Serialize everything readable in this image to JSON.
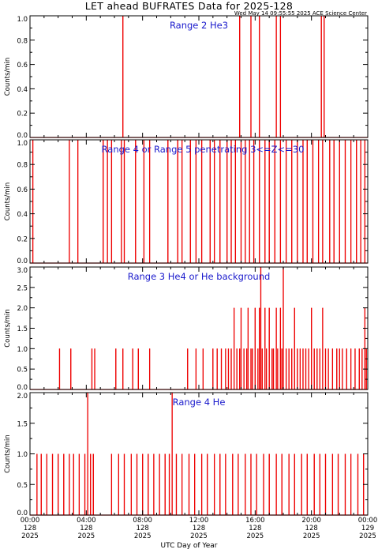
{
  "title": "LET ahead BUFRATES Data for 2025-128",
  "timestamp": "Wed May 14 09:55:55 2025 ACE Science Center",
  "xlabel": "UTC Day of Year",
  "colors": {
    "data": "#ee0000",
    "panel_label": "#1a1acc",
    "axes": "#000000"
  },
  "x_ticks": [
    {
      "time": "00:00",
      "doy": "128",
      "year": "2025"
    },
    {
      "time": "04:00",
      "doy": "128",
      "year": "2025"
    },
    {
      "time": "08:00",
      "doy": "128",
      "year": "2025"
    },
    {
      "time": "12:00",
      "doy": "128",
      "year": "2025"
    },
    {
      "time": "16:00",
      "doy": "128",
      "year": "2025"
    },
    {
      "time": "20:00",
      "doy": "128",
      "year": "2025"
    },
    {
      "time": "00:00",
      "doy": "129",
      "year": "2025"
    }
  ],
  "chart_data": [
    {
      "type": "line",
      "label": "Range 2 He3",
      "ylabel": "Counts/min",
      "xlim_hours": [
        0,
        24
      ],
      "ylim": [
        0,
        1.0
      ],
      "yticks": [
        "0.0",
        "0.2",
        "0.4",
        "0.6",
        "0.8",
        "1.0"
      ],
      "spikes": [
        [
          6.6,
          1
        ],
        [
          14.9,
          1
        ],
        [
          15.7,
          1
        ],
        [
          16.3,
          1
        ],
        [
          17.5,
          1
        ],
        [
          17.8,
          1
        ],
        [
          20.7,
          1
        ],
        [
          20.9,
          1
        ]
      ]
    },
    {
      "type": "line",
      "label": "Range 4 or Range 5 penetrating 3<=Z<=30",
      "ylabel": "Counts/min",
      "xlim_hours": [
        0,
        24
      ],
      "ylim": [
        0,
        1.0
      ],
      "yticks": [
        "0.0",
        "0.2",
        "0.4",
        "0.6",
        "0.8",
        "1.0"
      ],
      "spikes": [
        [
          0.2,
          1
        ],
        [
          2.8,
          1
        ],
        [
          3.4,
          1
        ],
        [
          5.2,
          1
        ],
        [
          5.5,
          1
        ],
        [
          5.8,
          1
        ],
        [
          6.5,
          1
        ],
        [
          6.7,
          1
        ],
        [
          7.5,
          1
        ],
        [
          8.1,
          1
        ],
        [
          8.5,
          1
        ],
        [
          9.8,
          1
        ],
        [
          10.5,
          1
        ],
        [
          10.8,
          1
        ],
        [
          11.4,
          1
        ],
        [
          11.8,
          1
        ],
        [
          12.2,
          1
        ],
        [
          12.8,
          1
        ],
        [
          13.1,
          1
        ],
        [
          13.5,
          1
        ],
        [
          14.0,
          1
        ],
        [
          14.3,
          1
        ],
        [
          14.6,
          1
        ],
        [
          15.0,
          1
        ],
        [
          15.3,
          1
        ],
        [
          15.6,
          1
        ],
        [
          15.9,
          1
        ],
        [
          16.3,
          1
        ],
        [
          16.7,
          1
        ],
        [
          17.0,
          1
        ],
        [
          17.4,
          1
        ],
        [
          17.8,
          1
        ],
        [
          18.2,
          1
        ],
        [
          18.6,
          1
        ],
        [
          19.0,
          1
        ],
        [
          19.4,
          1
        ],
        [
          19.7,
          1
        ],
        [
          20.1,
          1
        ],
        [
          20.5,
          1
        ],
        [
          20.8,
          1
        ],
        [
          21.3,
          1
        ],
        [
          21.6,
          1
        ],
        [
          22.0,
          1
        ],
        [
          22.4,
          1
        ],
        [
          22.8,
          1
        ],
        [
          23.2,
          1
        ],
        [
          23.5,
          1
        ],
        [
          23.8,
          1
        ]
      ]
    },
    {
      "type": "line",
      "label": "Range 3 He4 or He background",
      "ylabel": "Counts/min",
      "xlim_hours": [
        0,
        24
      ],
      "ylim": [
        0,
        3.0
      ],
      "yticks": [
        "0.0",
        "0.5",
        "1.0",
        "1.5",
        "2.0",
        "2.5",
        "3.0"
      ],
      "spikes": [
        [
          2.1,
          1
        ],
        [
          2.9,
          1
        ],
        [
          4.4,
          1
        ],
        [
          4.6,
          1
        ],
        [
          6.1,
          1
        ],
        [
          6.6,
          1
        ],
        [
          7.3,
          1
        ],
        [
          7.7,
          1
        ],
        [
          8.5,
          1
        ],
        [
          11.2,
          1
        ],
        [
          11.8,
          1
        ],
        [
          12.3,
          1
        ],
        [
          13.0,
          1
        ],
        [
          13.3,
          1
        ],
        [
          13.6,
          1
        ],
        [
          13.9,
          1
        ],
        [
          14.1,
          1
        ],
        [
          14.3,
          1
        ],
        [
          14.5,
          2
        ],
        [
          14.7,
          1
        ],
        [
          14.9,
          1
        ],
        [
          15.0,
          2
        ],
        [
          15.2,
          1
        ],
        [
          15.4,
          1
        ],
        [
          15.5,
          2
        ],
        [
          15.7,
          1
        ],
        [
          15.8,
          1
        ],
        [
          16.0,
          2
        ],
        [
          16.2,
          1
        ],
        [
          16.3,
          2
        ],
        [
          16.4,
          3
        ],
        [
          16.5,
          1
        ],
        [
          16.7,
          2
        ],
        [
          16.8,
          1
        ],
        [
          17.0,
          2
        ],
        [
          17.2,
          1
        ],
        [
          17.3,
          1
        ],
        [
          17.5,
          2
        ],
        [
          17.6,
          1
        ],
        [
          17.8,
          2
        ],
        [
          17.9,
          1
        ],
        [
          18.0,
          3
        ],
        [
          18.2,
          1
        ],
        [
          18.4,
          1
        ],
        [
          18.6,
          1
        ],
        [
          18.8,
          2
        ],
        [
          19.0,
          1
        ],
        [
          19.2,
          1
        ],
        [
          19.4,
          1
        ],
        [
          19.6,
          1
        ],
        [
          19.8,
          1
        ],
        [
          20.0,
          2
        ],
        [
          20.2,
          1
        ],
        [
          20.4,
          1
        ],
        [
          20.6,
          1
        ],
        [
          20.8,
          2
        ],
        [
          21.0,
          1
        ],
        [
          21.2,
          1
        ],
        [
          21.5,
          1
        ],
        [
          21.8,
          1
        ],
        [
          22.0,
          1
        ],
        [
          22.2,
          1
        ],
        [
          22.5,
          1
        ],
        [
          22.8,
          1
        ],
        [
          23.1,
          1
        ],
        [
          23.4,
          1
        ],
        [
          23.6,
          1
        ],
        [
          23.8,
          2
        ],
        [
          23.9,
          1
        ]
      ]
    },
    {
      "type": "line",
      "label": "Range 4 He",
      "ylabel": "Counts/min",
      "xlim_hours": [
        0,
        24
      ],
      "ylim": [
        0,
        2.0
      ],
      "yticks": [
        "0.0",
        "0.5",
        "1.0",
        "1.5",
        "2.0"
      ],
      "spikes": [
        [
          0.5,
          1
        ],
        [
          0.8,
          1
        ],
        [
          1.2,
          1
        ],
        [
          1.6,
          1
        ],
        [
          2.0,
          1
        ],
        [
          2.4,
          1
        ],
        [
          2.8,
          1
        ],
        [
          3.1,
          1
        ],
        [
          3.5,
          1
        ],
        [
          3.9,
          1
        ],
        [
          4.1,
          2
        ],
        [
          4.3,
          1
        ],
        [
          4.5,
          1
        ],
        [
          5.8,
          1
        ],
        [
          6.3,
          1
        ],
        [
          6.7,
          1
        ],
        [
          7.2,
          1
        ],
        [
          7.6,
          1
        ],
        [
          8.0,
          1
        ],
        [
          8.4,
          1
        ],
        [
          8.8,
          1
        ],
        [
          9.2,
          1
        ],
        [
          9.6,
          1
        ],
        [
          9.9,
          1
        ],
        [
          10.1,
          2
        ],
        [
          10.4,
          1
        ],
        [
          10.8,
          1
        ],
        [
          11.3,
          1
        ],
        [
          11.7,
          1
        ],
        [
          12.2,
          1
        ],
        [
          12.6,
          1
        ],
        [
          13.1,
          1
        ],
        [
          13.5,
          1
        ],
        [
          13.9,
          1
        ],
        [
          14.4,
          1
        ],
        [
          14.8,
          1
        ],
        [
          15.3,
          1
        ],
        [
          15.7,
          1
        ],
        [
          16.1,
          1
        ],
        [
          16.6,
          1
        ],
        [
          17.0,
          1
        ],
        [
          17.5,
          1
        ],
        [
          17.9,
          1
        ],
        [
          18.4,
          1
        ],
        [
          18.8,
          1
        ],
        [
          19.3,
          1
        ],
        [
          19.7,
          1
        ],
        [
          20.2,
          1
        ],
        [
          20.6,
          1
        ],
        [
          21.0,
          1
        ],
        [
          21.5,
          1
        ],
        [
          21.9,
          1
        ],
        [
          22.4,
          1
        ],
        [
          22.8,
          1
        ],
        [
          23.3,
          1
        ],
        [
          23.7,
          1
        ]
      ]
    }
  ]
}
